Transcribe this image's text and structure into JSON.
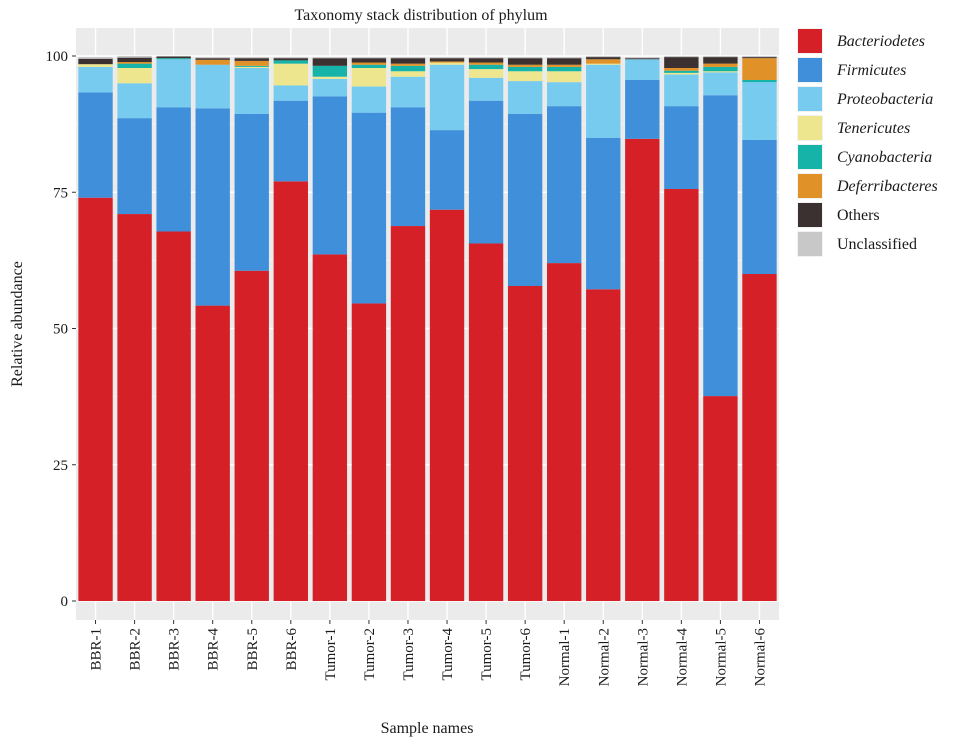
{
  "chart_data": {
    "type": "bar",
    "stacked": true,
    "title": "Taxonomy stack distribution of phylum",
    "xlabel": "Sample names",
    "ylabel": "Relative abundance",
    "ylim": [
      0,
      101
    ],
    "yticks": [
      0,
      25,
      50,
      75,
      100
    ],
    "grid": true,
    "legend_position": "right",
    "categories": [
      "BBR-1",
      "BBR-2",
      "BBR-3",
      "BBR-4",
      "BBR-5",
      "BBR-6",
      "Tumor-1",
      "Tumor-2",
      "Tumor-3",
      "Tumor-4",
      "Tumor-5",
      "Tumor-6",
      "Normal-1",
      "Normal-2",
      "Normal-3",
      "Normal-4",
      "Normal-5",
      "Normal-6"
    ],
    "series": [
      {
        "name": "Bacteriodetes",
        "italic": true,
        "color": "#d62027",
        "values": [
          74.0,
          71.0,
          67.8,
          54.2,
          60.6,
          77.0,
          63.6,
          54.6,
          68.8,
          71.8,
          65.6,
          57.8,
          62.0,
          57.2,
          84.8,
          75.6,
          37.6,
          60.0
        ]
      },
      {
        "name": "Firmicutes",
        "italic": true,
        "color": "#3f8fdb",
        "values": [
          19.3,
          17.6,
          22.8,
          36.2,
          28.8,
          14.8,
          29.0,
          35.0,
          21.8,
          14.6,
          26.2,
          31.6,
          28.8,
          27.8,
          10.8,
          15.2,
          55.2,
          24.6
        ]
      },
      {
        "name": "Proteobacteria",
        "italic": true,
        "color": "#76cbee",
        "values": [
          4.7,
          6.4,
          8.8,
          8.0,
          8.4,
          2.8,
          3.2,
          4.8,
          5.6,
          12.0,
          4.2,
          6.0,
          4.4,
          13.4,
          3.8,
          5.8,
          4.2,
          10.6
        ]
      },
      {
        "name": "Tenericutes",
        "italic": true,
        "color": "#ede68e",
        "values": [
          0.5,
          2.8,
          0.0,
          0.0,
          0.2,
          4.0,
          0.4,
          3.4,
          1.0,
          0.4,
          1.6,
          1.8,
          2.0,
          0.2,
          0.0,
          0.3,
          0.2,
          0.0
        ]
      },
      {
        "name": "Cyanobacteria",
        "italic": true,
        "color": "#16b4a8",
        "values": [
          0.0,
          0.8,
          0.2,
          0.0,
          0.2,
          0.6,
          2.0,
          0.6,
          1.0,
          0.0,
          0.8,
          0.8,
          0.8,
          0.0,
          0.0,
          0.4,
          0.8,
          0.4
        ]
      },
      {
        "name": "Deferribacteres",
        "italic": true,
        "color": "#e09128",
        "values": [
          0.0,
          0.3,
          0.0,
          0.9,
          0.9,
          0.0,
          0.0,
          0.4,
          0.4,
          0.2,
          0.4,
          0.4,
          0.4,
          0.8,
          0.0,
          0.5,
          0.6,
          4.0
        ]
      },
      {
        "name": "Others",
        "italic": false,
        "color": "#3a3130",
        "values": [
          1.0,
          0.8,
          0.3,
          0.3,
          0.5,
          0.4,
          1.4,
          0.8,
          1.0,
          0.6,
          0.8,
          1.2,
          1.2,
          0.4,
          0.2,
          2.0,
          1.2,
          0.2
        ]
      },
      {
        "name": "Unclassified",
        "italic": false,
        "color": "#c8c8c8",
        "values": [
          0.3,
          0.3,
          0.1,
          0.2,
          0.2,
          0.2,
          0.2,
          0.2,
          0.2,
          0.2,
          0.2,
          0.2,
          0.2,
          0.2,
          0.2,
          0.2,
          0.2,
          0.2
        ]
      }
    ]
  }
}
